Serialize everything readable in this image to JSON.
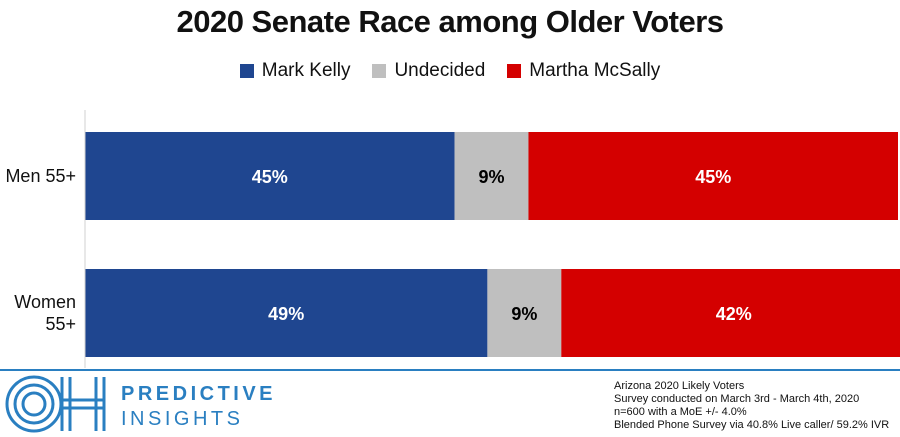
{
  "chart_data": {
    "type": "bar",
    "orientation": "horizontal-stacked-100",
    "title": "2020 Senate Race among Older Voters",
    "categories": [
      "Men 55+",
      "Women 55+"
    ],
    "series": [
      {
        "name": "Mark Kelly",
        "values": [
          45,
          49
        ],
        "labels": [
          "45%",
          "49%"
        ],
        "color": "#1f4690",
        "label_color": "#ffffff"
      },
      {
        "name": "Undecided",
        "values": [
          9,
          9
        ],
        "labels": [
          "9%",
          "9%"
        ],
        "color": "#bfbfbf",
        "label_color": "#000000"
      },
      {
        "name": "Martha McSally",
        "values": [
          45,
          42
        ],
        "labels": [
          "45%",
          "42%"
        ],
        "color": "#d40000",
        "label_color": "#ffffff"
      }
    ],
    "legend_position": "top-center",
    "grid": false
  },
  "brand": {
    "line1": "PREDICTIVE",
    "line2": "INSIGHTS",
    "logo_icon": "oh-logo-icon",
    "color": "#2a7fc1"
  },
  "footnote": [
    "Arizona 2020 Likely Voters",
    "Survey conducted on March 3rd - March 4th, 2020",
    "n=600 with a MoE +/- 4.0%",
    "Blended Phone Survey via 40.8% Live caller/ 59.2% IVR"
  ]
}
